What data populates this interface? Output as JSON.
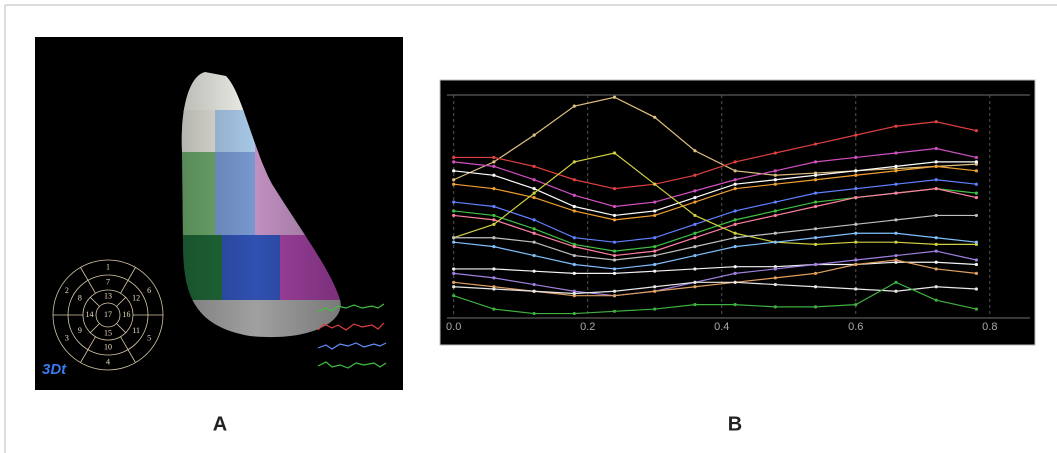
{
  "panel_labels": [
    "A",
    "B"
  ],
  "panel_a": {
    "badge": "3Dt",
    "bullseye": [
      "1",
      "2",
      "3",
      "4",
      "5",
      "6",
      "7",
      "8",
      "9",
      "10",
      "11",
      "12",
      "13",
      "14",
      "15",
      "16",
      "17"
    ]
  },
  "chart_data": {
    "type": "line",
    "x": [
      0,
      0.06,
      0.12,
      0.18,
      0.24,
      0.3,
      0.36,
      0.42,
      0.48,
      0.54,
      0.6,
      0.66,
      0.72,
      0.78
    ],
    "xlim": [
      -0.01,
      0.86
    ],
    "ylim": [
      0,
      100
    ],
    "xticks": [
      {
        "value": 0,
        "label": "0.0"
      },
      0.2,
      0.4,
      0.6,
      0.8
    ],
    "grid": true,
    "series": [
      {
        "color": "#e0c080",
        "values": [
          62,
          70,
          82,
          95,
          99,
          90,
          75,
          66,
          64,
          65,
          66,
          67,
          68,
          69
        ]
      },
      {
        "color": "#e04040",
        "values": [
          72,
          72,
          68,
          62,
          58,
          60,
          64,
          70,
          74,
          78,
          82,
          86,
          88,
          84
        ]
      },
      {
        "color": "#d050c0",
        "values": [
          70,
          68,
          62,
          55,
          50,
          52,
          57,
          62,
          66,
          70,
          72,
          74,
          76,
          72
        ]
      },
      {
        "color": "#ffffff",
        "values": [
          66,
          64,
          58,
          50,
          46,
          48,
          54,
          60,
          62,
          64,
          66,
          68,
          70,
          70
        ]
      },
      {
        "color": "#f0a030",
        "values": [
          60,
          58,
          54,
          48,
          44,
          46,
          52,
          58,
          60,
          62,
          64,
          66,
          68,
          66
        ]
      },
      {
        "color": "#6080ff",
        "values": [
          52,
          50,
          44,
          36,
          34,
          36,
          42,
          48,
          52,
          56,
          58,
          60,
          62,
          60
        ]
      },
      {
        "color": "#40c040",
        "values": [
          48,
          46,
          40,
          33,
          30,
          32,
          38,
          44,
          48,
          52,
          54,
          56,
          58,
          56
        ]
      },
      {
        "color": "#ff80a0",
        "values": [
          46,
          44,
          38,
          32,
          28,
          30,
          36,
          42,
          46,
          50,
          54,
          56,
          58,
          54
        ]
      },
      {
        "color": "#d0d040",
        "values": [
          36,
          42,
          56,
          70,
          74,
          60,
          46,
          38,
          34,
          33,
          34,
          34,
          33,
          33
        ]
      },
      {
        "color": "#c0c0c0",
        "values": [
          36,
          36,
          34,
          28,
          26,
          28,
          32,
          36,
          38,
          40,
          42,
          44,
          46,
          46
        ]
      },
      {
        "color": "#80c0ff",
        "values": [
          34,
          32,
          28,
          24,
          22,
          24,
          28,
          32,
          34,
          36,
          38,
          38,
          36,
          34
        ]
      },
      {
        "color": "#f4f4f4",
        "values": [
          22,
          22,
          21,
          20,
          20,
          21,
          22,
          23,
          23,
          24,
          24,
          25,
          25,
          24
        ]
      },
      {
        "color": "#a080e0",
        "values": [
          20,
          18,
          15,
          12,
          10,
          12,
          16,
          20,
          22,
          24,
          26,
          28,
          30,
          26
        ]
      },
      {
        "color": "#e0a060",
        "values": [
          16,
          14,
          12,
          10,
          10,
          12,
          14,
          16,
          18,
          20,
          24,
          26,
          22,
          20
        ]
      },
      {
        "color": "#e8e8e8",
        "values": [
          14,
          13,
          12,
          11,
          12,
          14,
          16,
          16,
          15,
          14,
          13,
          12,
          14,
          13
        ]
      },
      {
        "color": "#40b040",
        "values": [
          10,
          4,
          2,
          2,
          3,
          4,
          6,
          6,
          5,
          5,
          6,
          16,
          8,
          4
        ]
      }
    ]
  }
}
